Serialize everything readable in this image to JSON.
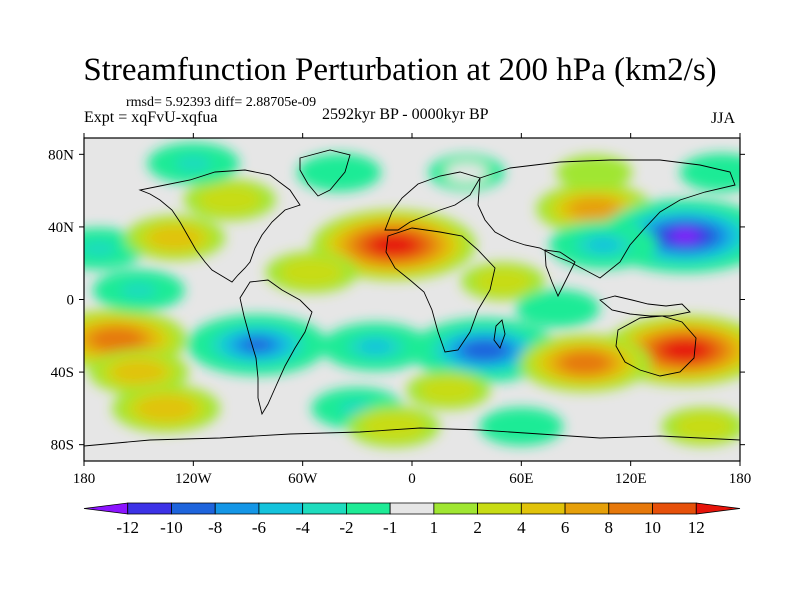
{
  "title": "Streamfunction Perturbation at 200 hPa (km2/s)",
  "stats": "rmsd= 5.92393 diff= 2.88705e-09",
  "expt": "Expt = xqFvU-xqfua",
  "period": "2592kyr BP - 0000kyr BP",
  "season": "JJA",
  "axes": {
    "lon_ticks": [
      {
        "value": -180,
        "label": "180"
      },
      {
        "value": -120,
        "label": "120W"
      },
      {
        "value": -60,
        "label": "60W"
      },
      {
        "value": 0,
        "label": "0"
      },
      {
        "value": 60,
        "label": "60E"
      },
      {
        "value": 120,
        "label": "120E"
      },
      {
        "value": 180,
        "label": "180"
      }
    ],
    "lat_ticks": [
      {
        "value": 80,
        "label": "80N"
      },
      {
        "value": 40,
        "label": "40N"
      },
      {
        "value": 0,
        "label": "0"
      },
      {
        "value": -40,
        "label": "40S"
      },
      {
        "value": -80,
        "label": "80S"
      }
    ]
  },
  "colorbar": {
    "colors": [
      "#8c14ff",
      "#3c32e6",
      "#1e64dc",
      "#1496e6",
      "#14c3dc",
      "#1edcbe",
      "#1eeb96",
      "#e6e6e6",
      "#a0e632",
      "#c8dc14",
      "#e1c30a",
      "#e6a00a",
      "#e6780a",
      "#e6500a",
      "#e6140a"
    ],
    "labels": [
      "-12",
      "-10",
      "-8",
      "-6",
      "-4",
      "-2",
      "-1",
      "1",
      "2",
      "4",
      "6",
      "8",
      "10",
      "12"
    ]
  },
  "map_data": {
    "background_color": "#e6e6e6",
    "regions": [
      {
        "lon": -162,
        "lat": -22,
        "value": 9
      },
      {
        "lon": -150,
        "lat": -40,
        "value": 4
      },
      {
        "lon": -172,
        "lat": 28,
        "value": -3
      },
      {
        "lon": -130,
        "lat": 34,
        "value": 4
      },
      {
        "lon": -100,
        "lat": 55,
        "value": 3
      },
      {
        "lon": -150,
        "lat": 5,
        "value": -3
      },
      {
        "lon": -135,
        "lat": -60,
        "value": 5
      },
      {
        "lon": -120,
        "lat": 75,
        "value": -3
      },
      {
        "lon": -40,
        "lat": 70,
        "value": -2
      },
      {
        "lon": -85,
        "lat": -25,
        "value": -9
      },
      {
        "lon": -20,
        "lat": -26,
        "value": -5
      },
      {
        "lon": 40,
        "lat": -28,
        "value": -10
      },
      {
        "lon": -10,
        "lat": 30,
        "value": 12
      },
      {
        "lon": -55,
        "lat": 15,
        "value": 3
      },
      {
        "lon": 50,
        "lat": 10,
        "value": 2
      },
      {
        "lon": 100,
        "lat": 50,
        "value": 6
      },
      {
        "lon": 150,
        "lat": 35,
        "value": -13
      },
      {
        "lon": 105,
        "lat": 30,
        "value": -5
      },
      {
        "lon": 150,
        "lat": -28,
        "value": 12
      },
      {
        "lon": 95,
        "lat": -35,
        "value": 8
      },
      {
        "lon": 80,
        "lat": -5,
        "value": -2
      },
      {
        "lon": 20,
        "lat": -50,
        "value": 2
      },
      {
        "lon": -30,
        "lat": -60,
        "value": -3
      },
      {
        "lon": 60,
        "lat": -70,
        "value": -2
      },
      {
        "lon": 30,
        "lat": 70,
        "value": -1
      },
      {
        "lon": 100,
        "lat": 70,
        "value": 1
      },
      {
        "lon": 170,
        "lat": 70,
        "value": -2
      },
      {
        "lon": -10,
        "lat": -70,
        "value": 3
      },
      {
        "lon": 160,
        "lat": -70,
        "value": 2
      }
    ]
  }
}
